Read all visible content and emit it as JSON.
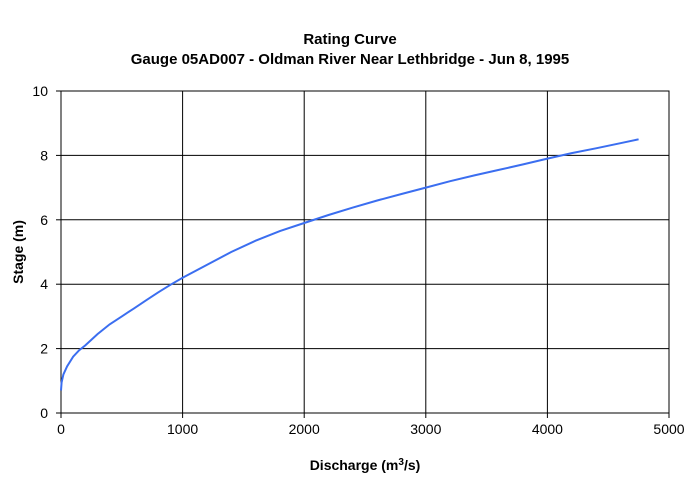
{
  "chart_data": {
    "type": "line",
    "title": "Rating Curve",
    "subtitle": "Gauge 05AD007 - Oldman River Near Lethbridge - Jun 8, 1995",
    "xlabel_main": "Discharge (m",
    "xlabel_sup": "3",
    "xlabel_tail": "/s)",
    "ylabel": "Stage (m)",
    "xlim": [
      0,
      5000
    ],
    "ylim": [
      0,
      10
    ],
    "xticks": [
      0,
      1000,
      2000,
      3000,
      4000,
      5000
    ],
    "yticks": [
      0,
      2,
      4,
      6,
      8,
      10
    ],
    "grid": true,
    "series": [
      {
        "color": "#3b6ef0",
        "x": [
          0,
          5,
          20,
          50,
          100,
          150,
          200,
          300,
          400,
          500,
          600,
          700,
          800,
          900,
          1000,
          1200,
          1400,
          1600,
          1800,
          2000,
          2200,
          2400,
          2600,
          2800,
          3000,
          3200,
          3400,
          3600,
          3800,
          4000,
          4200,
          4400,
          4600,
          4750
        ],
        "y": [
          0.7,
          0.95,
          1.2,
          1.45,
          1.75,
          1.95,
          2.1,
          2.45,
          2.75,
          3.0,
          3.25,
          3.5,
          3.75,
          3.98,
          4.2,
          4.6,
          5.0,
          5.35,
          5.65,
          5.9,
          6.15,
          6.38,
          6.6,
          6.8,
          7.0,
          7.2,
          7.38,
          7.55,
          7.72,
          7.9,
          8.07,
          8.22,
          8.38,
          8.5
        ]
      }
    ]
  }
}
